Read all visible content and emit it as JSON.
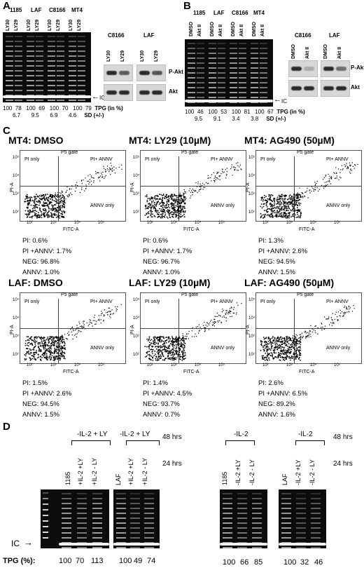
{
  "panel_a": {
    "letter": "A",
    "cells": [
      "1185",
      "LAF",
      "C8166",
      "MT4"
    ],
    "lanes": [
      "LY30",
      "LY29"
    ],
    "ic_label": "IC",
    "tpg_values": [
      "100",
      "78",
      "100",
      "69",
      "100",
      "70",
      "100",
      "79"
    ],
    "sd_values": [
      "6.7",
      "9.5",
      "6.9",
      "4.6"
    ],
    "tpg_label": "TPG (in %)",
    "sd_label": "SD (+/-)",
    "blot_cells": [
      "C8166",
      "LAF"
    ],
    "blot_lanes": [
      "LY30",
      "LY29",
      "LY30",
      "LY29"
    ],
    "blot_rows": [
      "P-Akt",
      "Akt"
    ]
  },
  "panel_b": {
    "letter": "B",
    "cells": [
      "1185",
      "LAF",
      "C8166",
      "MT4"
    ],
    "lanes": [
      "DMSO",
      "Akt II"
    ],
    "ic_label": "IC",
    "tpg_values": [
      "100",
      "46",
      "100",
      "53",
      "100",
      "81",
      "100",
      "67"
    ],
    "sd_values": [
      "9.5",
      "9.1",
      "3.4",
      "3.8"
    ],
    "tpg_label": "TPG (in %)",
    "sd_label": "SD (+/-)",
    "blot_cells": [
      "C8166",
      "LAF"
    ],
    "blot_lanes": [
      "DMSO",
      "Akt II",
      "DMSO",
      "Akt II"
    ],
    "blot_rows": [
      "P-Akt",
      "Akt"
    ]
  },
  "panel_c": {
    "letter": "C",
    "plot_labels": {
      "gate": "P5 gate",
      "pi_only": "PI only",
      "pi_annv": "PI+ ANNV",
      "annv_only": "ANNV only",
      "y_axis": "PI-A",
      "x_axis": "FITC-A",
      "ticks": [
        "10²",
        "10³",
        "10⁴",
        "10⁵"
      ]
    },
    "plots": [
      {
        "title": "MT4:  DMSO",
        "pi": "PI:  0.6%",
        "pi_annv": "PI +ANNV:  1.7%",
        "neg": "NEG:  96.8%",
        "annv": "ANNV:  1.0%"
      },
      {
        "title": "MT4:  LY29 (10µM)",
        "pi": "PI:  0.6%",
        "pi_annv": "PI +ANNV:  1.7%",
        "neg": "NEG:  96.7%",
        "annv": "ANNV:  1.0%"
      },
      {
        "title": "MT4:  AG490 (50µM)",
        "pi": "PI:  1.3%",
        "pi_annv": "PI +ANNV:  2.6%",
        "neg": "NEG:  94.5%",
        "annv": "ANNV:  1.5%"
      },
      {
        "title": "LAF:  DMSO",
        "pi": "PI:  1.5%",
        "pi_annv": "PI +ANNV:  2.6%",
        "neg": "NEG:  94.5%",
        "annv": "ANNV:  1.5%"
      },
      {
        "title": "LAF:  LY29 (10µM)",
        "pi": "PI:  1.4%",
        "pi_annv": "PI +ANNV:  4.5%",
        "neg": "NEG:  93.7%",
        "annv": "ANNV:  0.7%"
      },
      {
        "title": "LAF:  AG490 (50µM)",
        "pi": "PI:  2.6%",
        "pi_annv": "PI +ANNV:  6.5%",
        "neg": "NEG:  89.2%",
        "annv": "ANNV:  1.6%"
      }
    ]
  },
  "panel_d": {
    "letter": "D",
    "groups": [
      {
        "header": "-IL-2 + LY",
        "lanes": [
          "1185",
          "+IL-2 +LY",
          "+IL-2 - LY"
        ],
        "tpg": [
          "100",
          "70",
          "113"
        ]
      },
      {
        "header": "-IL-2 + LY",
        "lanes": [
          "LAF",
          "+IL-2 +LY",
          "+IL-2 - LY"
        ],
        "tpg": [
          "100",
          "49",
          "74"
        ]
      },
      {
        "header": "-IL-2",
        "lanes": [
          "1185",
          "-IL-2 +LY",
          "-IL-2 - LY"
        ],
        "tpg": [
          "100",
          "66",
          "85"
        ]
      },
      {
        "header": "-IL-2",
        "lanes": [
          "LAF",
          "-IL-2 +LY",
          "-IL-2 - LY"
        ],
        "tpg": [
          "100",
          "32",
          "46"
        ]
      }
    ],
    "time_48": "48 hrs",
    "time_24": "24 hrs",
    "ic_label": "IC",
    "tpg_label": "TPG (%):"
  }
}
